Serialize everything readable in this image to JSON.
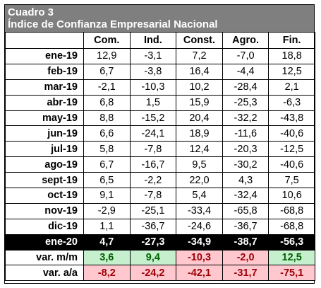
{
  "title": "Cuadro 3",
  "subtitle": "Índice de Confianza Empresarial Nacional",
  "columns": [
    "Com.",
    "Ind.",
    "Const.",
    "Agro.",
    "Fin."
  ],
  "rows": [
    {
      "label": "ene-19",
      "values": [
        "12,9",
        "-3,1",
        "7,2",
        "-7,0",
        "18,8"
      ]
    },
    {
      "label": "feb-19",
      "values": [
        "6,7",
        "-3,8",
        "16,4",
        "-4,4",
        "12,5"
      ]
    },
    {
      "label": "mar-19",
      "values": [
        "-2,1",
        "-10,3",
        "10,2",
        "-28,4",
        "2,1"
      ]
    },
    {
      "label": "abr-19",
      "values": [
        "6,8",
        "1,5",
        "15,9",
        "-25,3",
        "-6,3"
      ]
    },
    {
      "label": "may-19",
      "values": [
        "8,8",
        "-15,2",
        "20,4",
        "-32,2",
        "-43,8"
      ]
    },
    {
      "label": "jun-19",
      "values": [
        "6,6",
        "-24,1",
        "18,9",
        "-11,6",
        "-40,6"
      ]
    },
    {
      "label": "jul-19",
      "values": [
        "5,8",
        "-7,8",
        "12,4",
        "-20,3",
        "-12,5"
      ]
    },
    {
      "label": "ago-19",
      "values": [
        "6,7",
        "-16,7",
        "9,5",
        "-30,2",
        "-40,6"
      ]
    },
    {
      "label": "sept-19",
      "values": [
        "6,5",
        "-2,2",
        "22,0",
        "4,3",
        "7,5"
      ]
    },
    {
      "label": "oct-19",
      "values": [
        "9,1",
        "-7,8",
        "5,4",
        "-32,4",
        "10,6"
      ]
    },
    {
      "label": "nov-19",
      "values": [
        "-2,9",
        "-25,1",
        "-33,4",
        "-65,8",
        "-68,8"
      ]
    },
    {
      "label": "dic-19",
      "values": [
        "1,1",
        "-36,7",
        "-24,6",
        "-36,7",
        "-68,8"
      ]
    }
  ],
  "highlight_row": {
    "label": "ene-20",
    "values": [
      "4,7",
      "-27,3",
      "-34,9",
      "-38,7",
      "-56,3"
    ]
  },
  "summary_rows": [
    {
      "label": "var. m/m",
      "values": [
        "3,6",
        "9,4",
        "-10,3",
        "-2,0",
        "12,5"
      ],
      "signs": [
        "pos",
        "pos",
        "neg",
        "neg",
        "pos"
      ]
    },
    {
      "label": "var. a/a",
      "values": [
        "-8,2",
        "-24,2",
        "-42,1",
        "-31,7",
        "-75,1"
      ],
      "signs": [
        "neg",
        "neg",
        "neg",
        "neg",
        "neg"
      ]
    }
  ],
  "colors": {
    "header_bg": "#7f7f7f",
    "highlight_bg": "#000000",
    "positive_bg": "#c6efce",
    "positive_fg": "#006100",
    "negative_bg": "#ffc7ce",
    "negative_fg": "#9c0006"
  }
}
